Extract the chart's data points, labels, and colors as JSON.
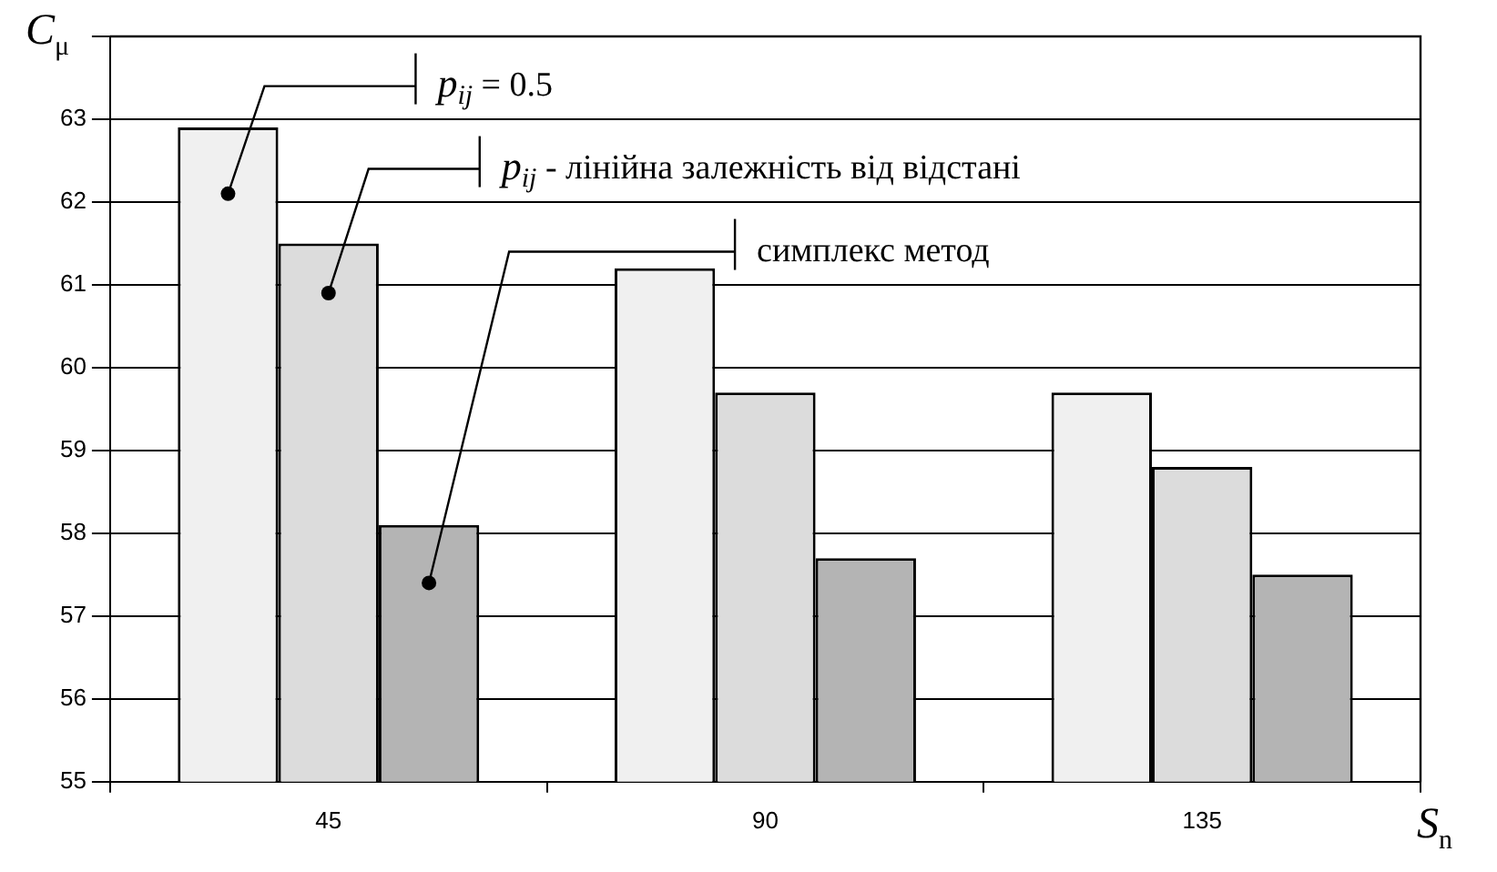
{
  "chart_data": {
    "type": "bar",
    "xlabel": "S$_{n}$",
    "ylabel": "C$_{μ}$",
    "categories": [
      "45",
      "90",
      "135"
    ],
    "series": [
      {
        "name": "p$_{ij}$ = 0.5",
        "color": "#f0f0f0",
        "values": [
          62.9,
          61.2,
          59.7
        ]
      },
      {
        "name": "p$_{ij}$ - лінійна залежність від відстані",
        "color": "#dcdcdc",
        "values": [
          61.5,
          59.7,
          58.8
        ]
      },
      {
        "name": "симплекс метод",
        "color": "#b4b4b4",
        "values": [
          58.1,
          57.7,
          57.5
        ]
      }
    ],
    "ylim": [
      55,
      64
    ],
    "yticks": [
      55,
      56,
      57,
      58,
      59,
      60,
      61,
      62,
      63,
      {
        "value": 64,
        "label": null
      }
    ],
    "grid": "y",
    "legend": false
  }
}
